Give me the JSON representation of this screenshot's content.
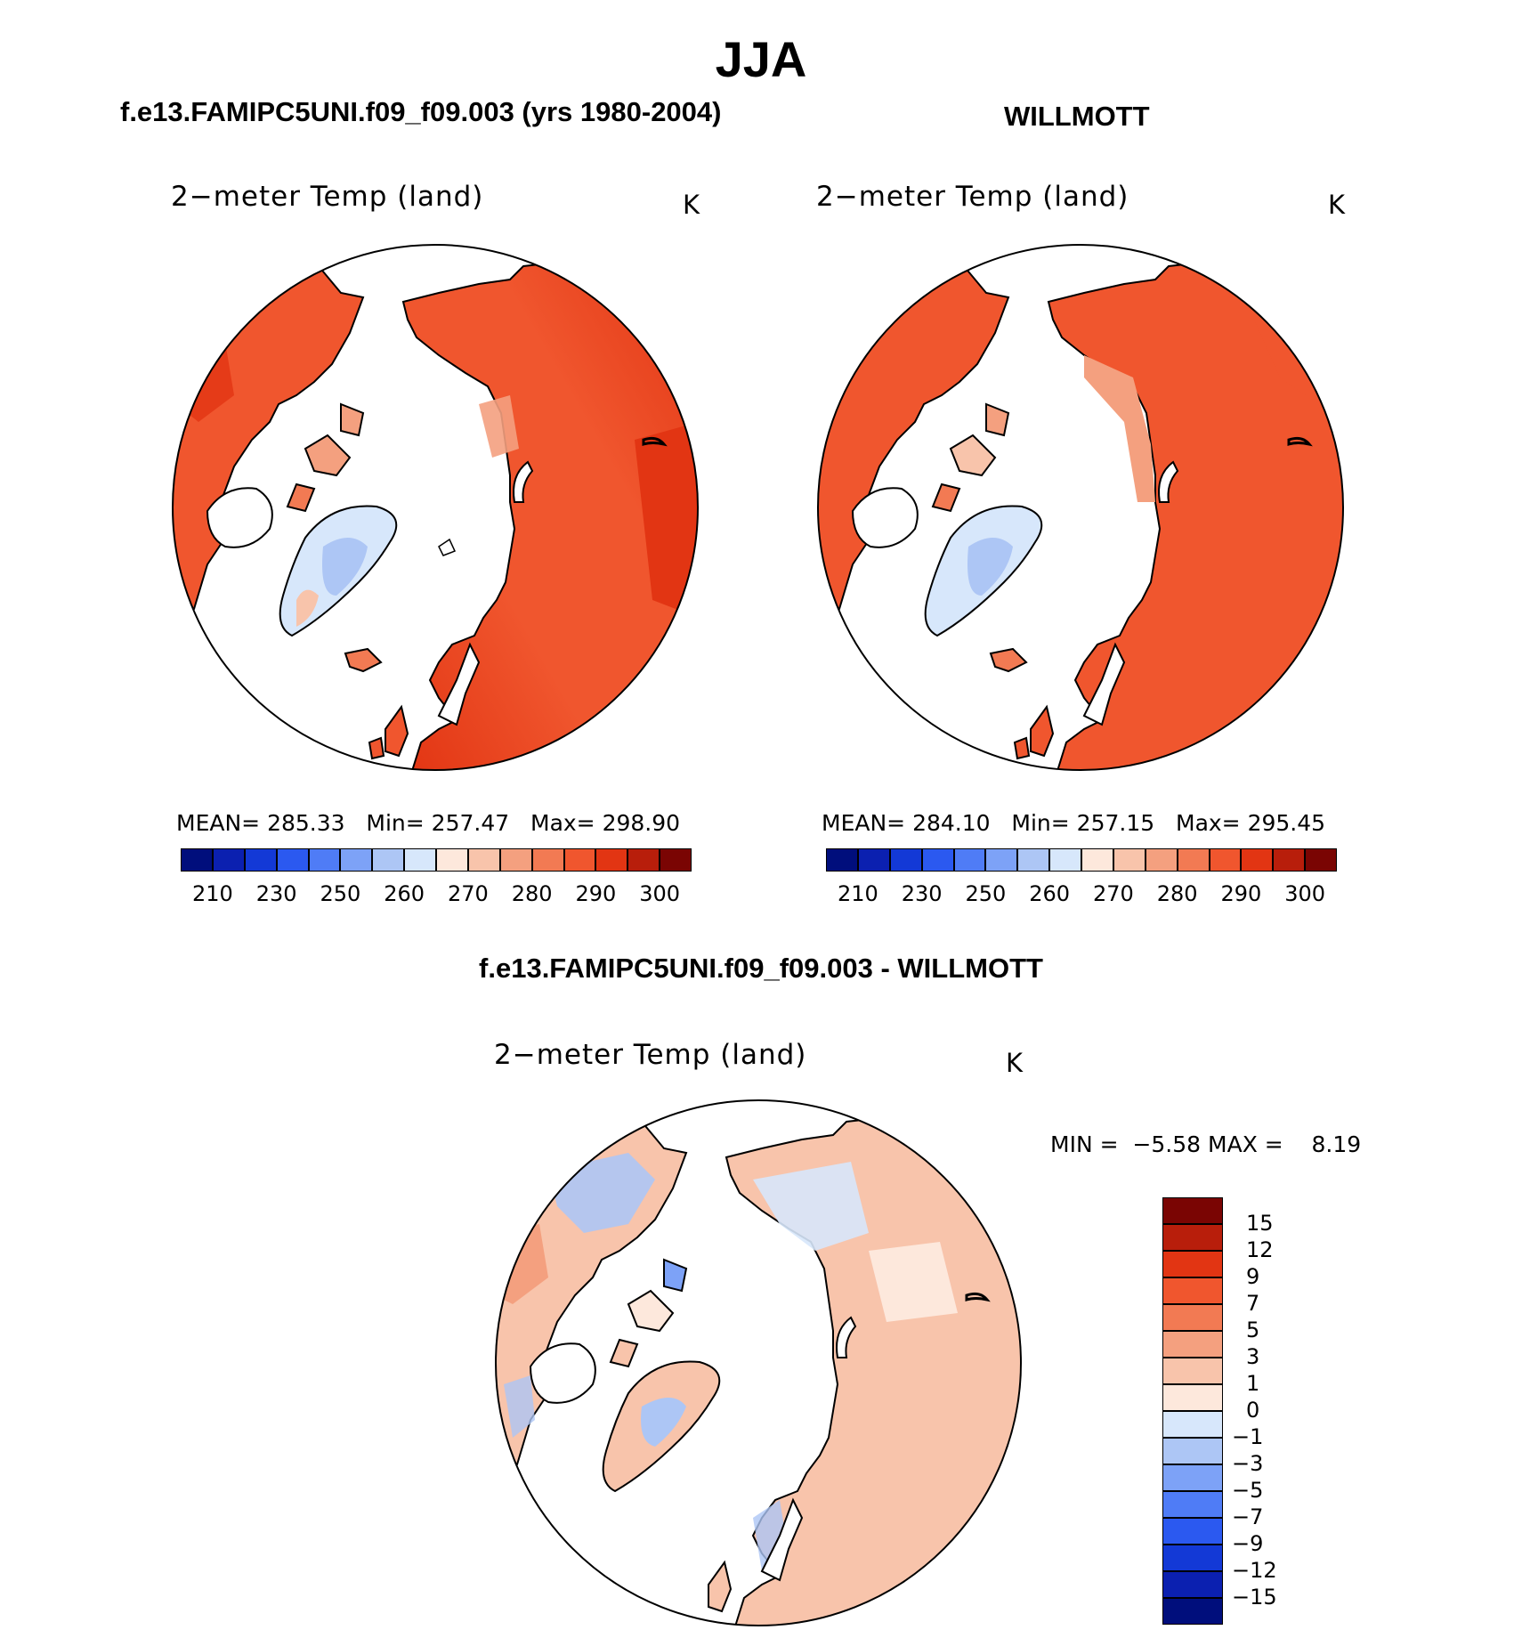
{
  "main_title": "JJA",
  "panels": [
    {
      "id": "model",
      "header": "f.e13.FAMIPC5UNI.f09_f09.003 (yrs 1980-2004)",
      "variable": "2−meter Temp (land)",
      "unit": "K",
      "stats": {
        "mean_label": "MEAN=",
        "mean": "285.33",
        "min_label": "Min=",
        "min": "257.47",
        "max_label": "Max=",
        "max": "298.90"
      },
      "colorbar": {
        "colors": [
          "#000e7c",
          "#0b20b0",
          "#1339d6",
          "#2b59f0",
          "#4f7cf6",
          "#7da2f7",
          "#adc6f5",
          "#d7e7fb",
          "#fde8dc",
          "#f8c4ab",
          "#f4a07f",
          "#f27a53",
          "#f0562e",
          "#e23513",
          "#b81e0b",
          "#7a0503"
        ],
        "tick_labels": [
          "210",
          "230",
          "250",
          "260",
          "270",
          "280",
          "290",
          "300"
        ]
      }
    },
    {
      "id": "obs",
      "header": "WILLMOTT",
      "variable": "2−meter Temp (land)",
      "unit": "K",
      "stats": {
        "mean_label": "MEAN=",
        "mean": "284.10",
        "min_label": "Min=",
        "min": "257.15",
        "max_label": "Max=",
        "max": "295.45"
      },
      "colorbar": {
        "colors": [
          "#000e7c",
          "#0b20b0",
          "#1339d6",
          "#2b59f0",
          "#4f7cf6",
          "#7da2f7",
          "#adc6f5",
          "#d7e7fb",
          "#fde8dc",
          "#f8c4ab",
          "#f4a07f",
          "#f27a53",
          "#f0562e",
          "#e23513",
          "#b81e0b",
          "#7a0503"
        ],
        "tick_labels": [
          "210",
          "230",
          "250",
          "260",
          "270",
          "280",
          "290",
          "300"
        ]
      }
    },
    {
      "id": "diff",
      "header": "f.e13.FAMIPC5UNI.f09_f09.003 - WILLMOTT",
      "variable": "2−meter Temp (land)",
      "unit": "K",
      "stats": {
        "min_label": "MIN =",
        "min": "−5.58",
        "max_label": "MAX =",
        "max": "8.19"
      },
      "colorbar": {
        "colors": [
          "#7a0503",
          "#b81e0b",
          "#e23513",
          "#f0562e",
          "#f27a53",
          "#f4a07f",
          "#f8c4ab",
          "#fde8dc",
          "#d7e7fb",
          "#adc6f5",
          "#7da2f7",
          "#4f7cf6",
          "#2b59f0",
          "#1339d6",
          "#0b20b0",
          "#000e7c"
        ],
        "tick_labels": [
          "15",
          "12",
          "9",
          "7",
          "5",
          "3",
          "1",
          "0",
          "−1",
          "−3",
          "−5",
          "−7",
          "−9",
          "−12",
          "−15"
        ]
      }
    }
  ]
}
